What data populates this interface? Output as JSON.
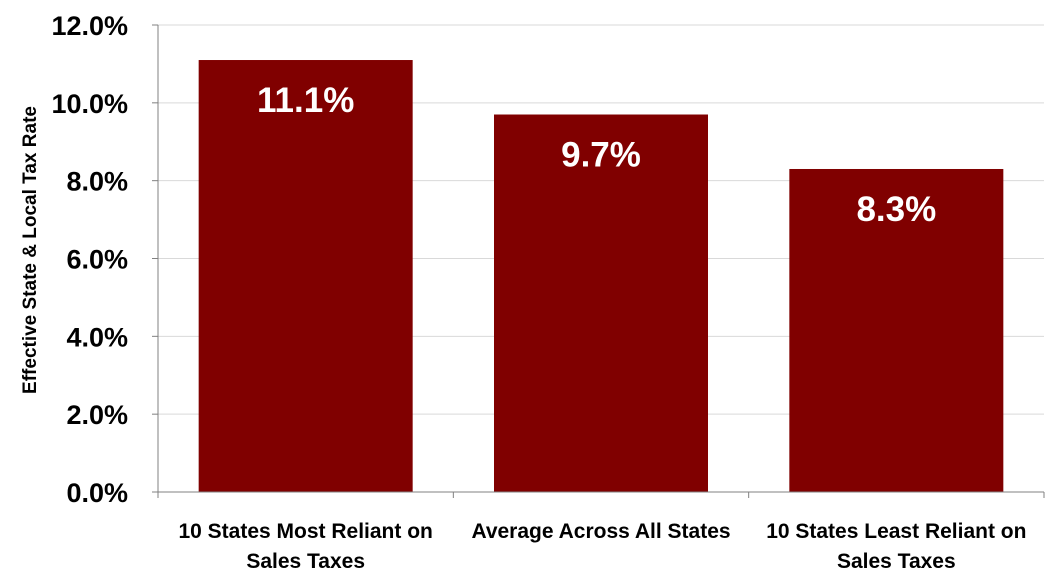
{
  "chart_data": {
    "type": "bar",
    "ylabel": "Effective State & Local Tax Rate",
    "xlabel": "",
    "categories": [
      [
        "10 States Most Reliant on",
        "Sales Taxes"
      ],
      [
        "Average Across All States"
      ],
      [
        "10 States Least Reliant on",
        "Sales Taxes"
      ]
    ],
    "values": [
      11.1,
      9.7,
      8.3
    ],
    "data_labels": [
      "11.1%",
      "9.7%",
      "8.3%"
    ],
    "ylim": [
      0,
      12
    ],
    "yticks": [
      0,
      2,
      4,
      6,
      8,
      10,
      12
    ],
    "ytick_labels": [
      "0.0%",
      "2.0%",
      "4.0%",
      "6.0%",
      "8.0%",
      "10.0%",
      "12.0%"
    ],
    "grid": true,
    "legend": "none",
    "bar_color": "#800000",
    "label_color": "#ffffff",
    "grid_color": "#d9d9d9"
  }
}
